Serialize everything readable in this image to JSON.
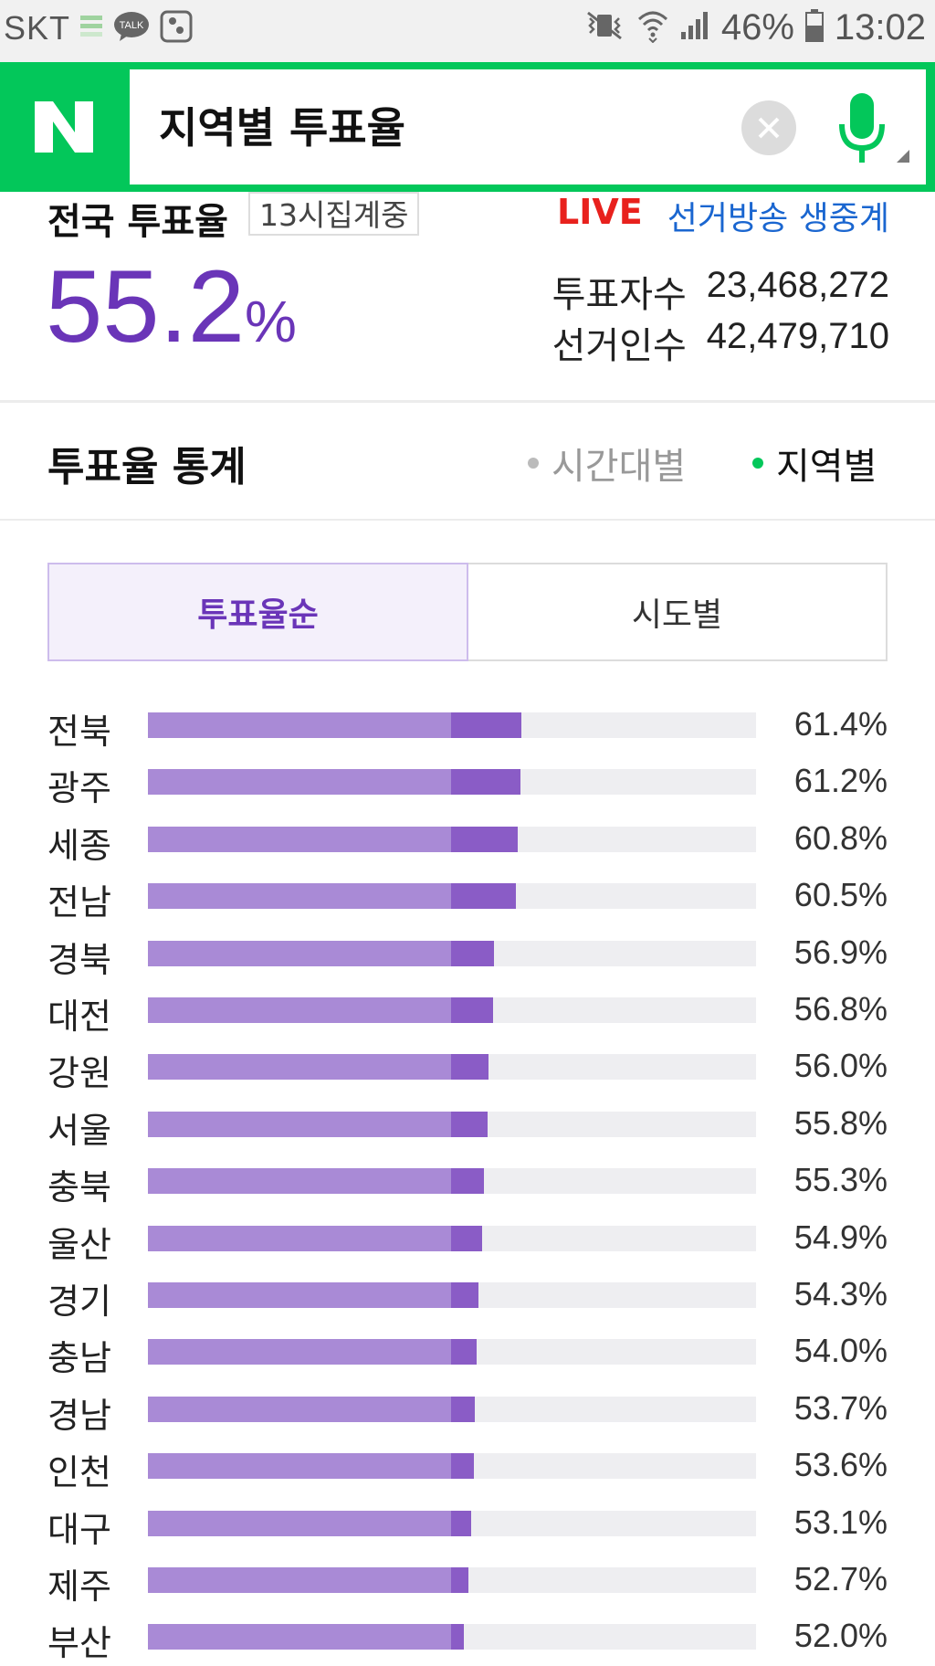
{
  "status_bar": {
    "carrier": "SKT",
    "battery": "46%",
    "time": "13:02"
  },
  "search": {
    "logo": "N",
    "query": "지역별 투표율"
  },
  "national": {
    "title": "전국 투표율",
    "badge": "13시집계중",
    "live": "LIVE",
    "broadcast_link": "선거방송 생중계",
    "rate": "55.2",
    "rate_unit": "%",
    "voters_label": "투표자수",
    "voters_value": "23,468,272",
    "electorate_label": "선거인수",
    "electorate_value": "42,479,710"
  },
  "stats": {
    "title": "투표율 통계",
    "tab_time": "시간대별",
    "tab_region": "지역별",
    "seg_rate": "투표율순",
    "seg_city": "시도별"
  },
  "chart_data": {
    "type": "bar",
    "categories": [
      "전북",
      "광주",
      "세종",
      "전남",
      "경북",
      "대전",
      "강원",
      "서울",
      "충북",
      "울산",
      "경기",
      "충남",
      "경남",
      "인천",
      "대구",
      "제주",
      "부산"
    ],
    "values": [
      61.4,
      61.2,
      60.8,
      60.5,
      56.9,
      56.8,
      56.0,
      55.8,
      55.3,
      54.9,
      54.3,
      54.0,
      53.7,
      53.6,
      53.1,
      52.7,
      52.0
    ],
    "labels": [
      "61.4%",
      "61.2%",
      "60.8%",
      "60.5%",
      "56.9%",
      "56.8%",
      "56.0%",
      "55.8%",
      "55.3%",
      "54.9%",
      "54.3%",
      "54.0%",
      "53.7%",
      "53.6%",
      "53.1%",
      "52.7%",
      "52.0%"
    ],
    "xlim": [
      0,
      100
    ],
    "colors": {
      "bar": "#a98ad6",
      "bar_tip": "#8a5cc6",
      "track": "#eeeef1"
    }
  }
}
